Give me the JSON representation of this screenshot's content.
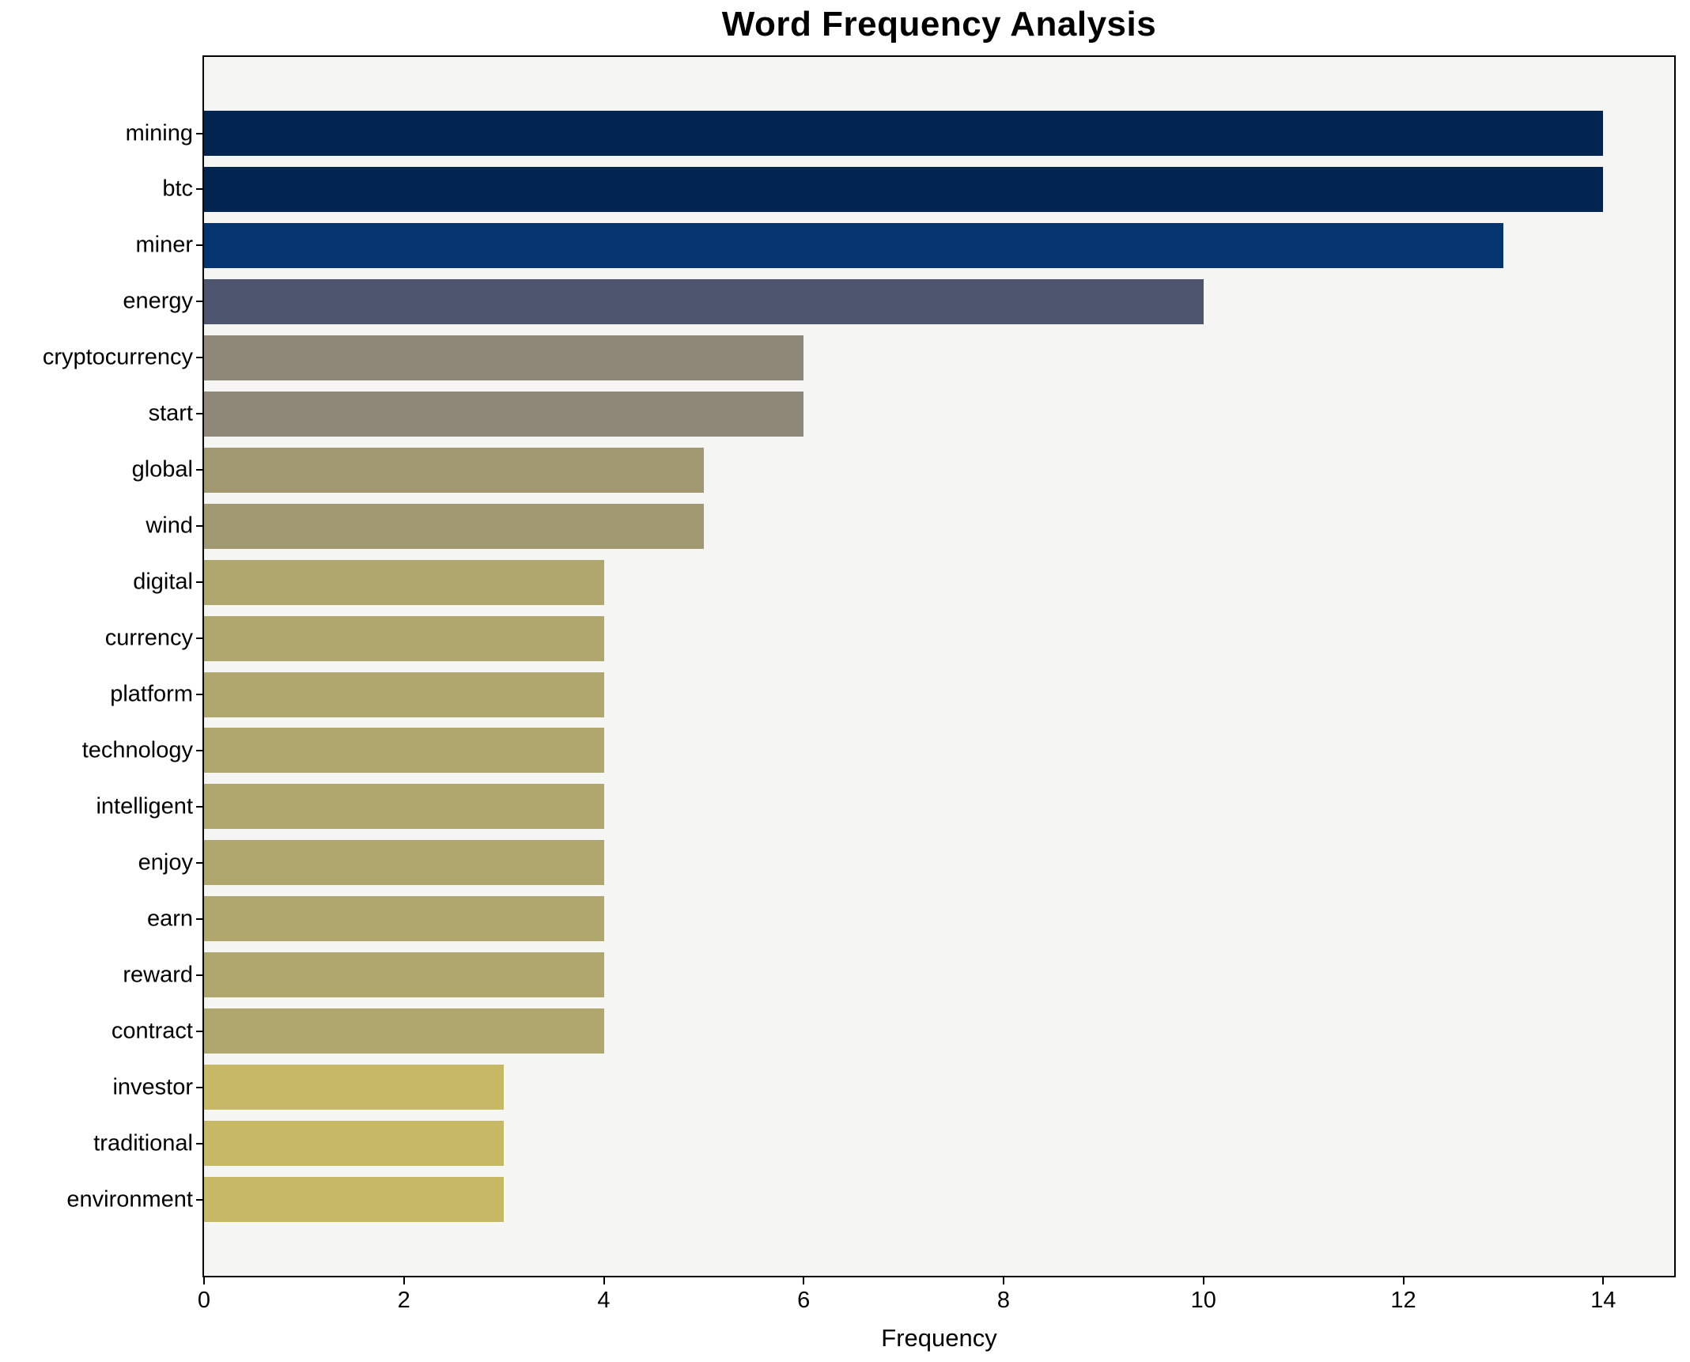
{
  "figure": {
    "background": "#ffffff",
    "plot_background": "#f5f5f3",
    "spine_color": "#000000",
    "text_color": "#000000"
  },
  "chart_data": {
    "type": "bar",
    "orientation": "horizontal",
    "title": "Word Frequency Analysis",
    "xlabel": "Frequency",
    "ylabel": "",
    "categories": [
      "mining",
      "btc",
      "miner",
      "energy",
      "cryptocurrency",
      "start",
      "global",
      "wind",
      "digital",
      "currency",
      "platform",
      "technology",
      "intelligent",
      "enjoy",
      "earn",
      "reward",
      "contract",
      "investor",
      "traditional",
      "environment"
    ],
    "values": [
      14,
      14,
      13,
      10,
      6,
      6,
      5,
      5,
      4,
      4,
      4,
      4,
      4,
      4,
      4,
      4,
      4,
      3,
      3,
      3
    ],
    "bar_colors": [
      "#022450",
      "#022450",
      "#04356f",
      "#4d566e",
      "#8d8878",
      "#8d8878",
      "#a19872",
      "#a19872",
      "#b0a76e",
      "#b0a76e",
      "#b0a76e",
      "#b0a76e",
      "#b0a76e",
      "#b0a76e",
      "#b0a76e",
      "#b0a76e",
      "#b0a76e",
      "#c7b866",
      "#c7b866",
      "#c7b866"
    ],
    "x_ticks": [
      0,
      2,
      4,
      6,
      8,
      10,
      12,
      14
    ],
    "xlim": [
      0,
      14.71
    ],
    "grid": false,
    "legend": false
  }
}
